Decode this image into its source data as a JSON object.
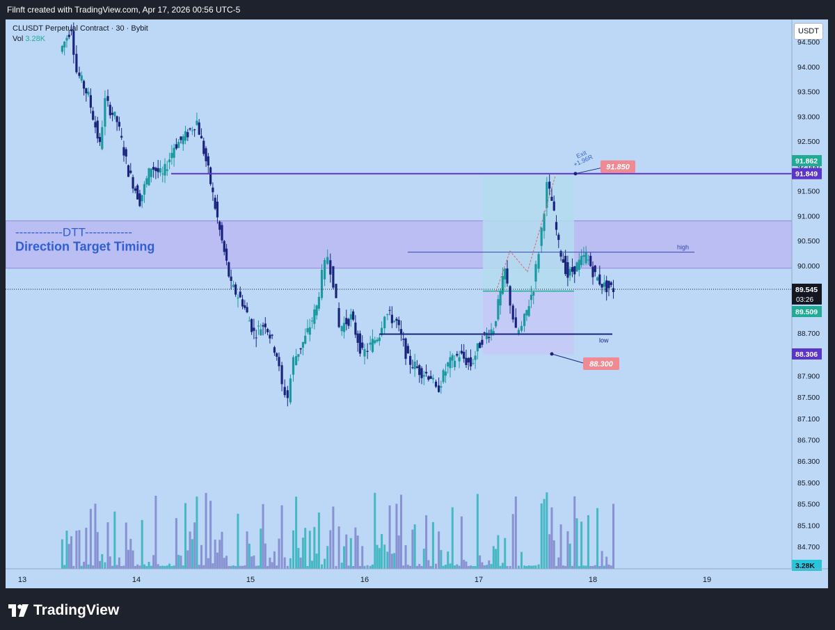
{
  "header": {
    "attribution": "Filnft created with TradingView.com, Apr 17, 2026 00:56 UTC-5"
  },
  "legend": {
    "symbol": "CLUSDT Perpetual Contract · 30 · Bybit",
    "vol_label": "Vol",
    "vol_value": "3.28K"
  },
  "currency_button": "USDT",
  "footer": {
    "brand": "TradingView"
  },
  "colors": {
    "background": "#bcd8f6",
    "candle_up": "#1a9aa0",
    "candle_down": "#1a237e",
    "target_line": "#5b35c8",
    "zone": "#b9b6f2",
    "profit_zone": "#b4dcee",
    "loss_zone": "#c3caf6",
    "label_red": "#ef8a92",
    "price_green": "#22ab94"
  },
  "chart_data": {
    "type": "candlestick",
    "symbol": "CLUSDT",
    "timeframe": "30",
    "exchange": "Bybit",
    "x_ticks": [
      "13",
      "14",
      "15",
      "16",
      "17",
      "18",
      "19"
    ],
    "y_ticks": [
      "94.500",
      "94.000",
      "93.500",
      "93.000",
      "92.500",
      "92.000",
      "91.500",
      "91.000",
      "90.500",
      "90.000",
      "88.700",
      "87.900",
      "87.500",
      "87.100",
      "86.700",
      "86.300",
      "85.900",
      "85.500",
      "85.100",
      "84.700"
    ],
    "price_path": [
      [
        13.35,
        94.3
      ],
      [
        13.45,
        94.8
      ],
      [
        13.5,
        93.9
      ],
      [
        13.6,
        93.4
      ],
      [
        13.7,
        92.4
      ],
      [
        13.75,
        93.3
      ],
      [
        13.85,
        92.9
      ],
      [
        13.95,
        91.9
      ],
      [
        14.05,
        91.3
      ],
      [
        14.15,
        92.0
      ],
      [
        14.25,
        91.8
      ],
      [
        14.35,
        92.4
      ],
      [
        14.45,
        92.6
      ],
      [
        14.55,
        92.9
      ],
      [
        14.65,
        91.9
      ],
      [
        14.75,
        90.7
      ],
      [
        14.85,
        89.6
      ],
      [
        14.95,
        89.3
      ],
      [
        15.05,
        88.7
      ],
      [
        15.15,
        88.9
      ],
      [
        15.25,
        88.3
      ],
      [
        15.3,
        87.7
      ],
      [
        15.35,
        87.5
      ],
      [
        15.4,
        88.2
      ],
      [
        15.5,
        88.6
      ],
      [
        15.6,
        89.2
      ],
      [
        15.65,
        89.8
      ],
      [
        15.7,
        90.2
      ],
      [
        15.75,
        89.7
      ],
      [
        15.8,
        88.8
      ],
      [
        15.9,
        89.0
      ],
      [
        16.0,
        88.3
      ],
      [
        16.05,
        88.4
      ],
      [
        16.15,
        88.7
      ],
      [
        16.2,
        89.1
      ],
      [
        16.3,
        88.9
      ],
      [
        16.4,
        88.2
      ],
      [
        16.5,
        88.0
      ],
      [
        16.6,
        87.9
      ],
      [
        16.65,
        87.6
      ],
      [
        16.75,
        88.1
      ],
      [
        16.85,
        88.3
      ],
      [
        16.95,
        88.1
      ],
      [
        17.05,
        88.6
      ],
      [
        17.15,
        88.8
      ],
      [
        17.25,
        89.9
      ],
      [
        17.3,
        89.3
      ],
      [
        17.35,
        88.7
      ],
      [
        17.4,
        88.8
      ],
      [
        17.5,
        89.6
      ],
      [
        17.55,
        90.3
      ],
      [
        17.62,
        91.6
      ],
      [
        17.66,
        91.3
      ],
      [
        17.72,
        90.4
      ],
      [
        17.8,
        89.8
      ],
      [
        17.88,
        90.0
      ],
      [
        17.96,
        90.2
      ],
      [
        18.04,
        89.8
      ],
      [
        18.12,
        89.6
      ],
      [
        18.2,
        89.55
      ]
    ],
    "levels": {
      "target": 91.849,
      "high_line": 90.27,
      "low_line": 88.68,
      "entry": 89.509
    },
    "position": {
      "exit_label": "Exit",
      "r_multiple": "+1.96R",
      "take_profit": "91.850",
      "stop_loss": "88.300"
    },
    "zone": {
      "label_line1": "------------DTT------------",
      "label_line2": "Direction Target Timing",
      "top": 90.9,
      "bottom": 89.95
    },
    "line_labels": {
      "high": "high",
      "low": "low"
    },
    "price_labels": {
      "tp": "91.862",
      "target": "91.849",
      "current": "89.545",
      "countdown": "03:26",
      "entry": "89.509",
      "sl": "88.306",
      "volume": "3.28K"
    }
  }
}
